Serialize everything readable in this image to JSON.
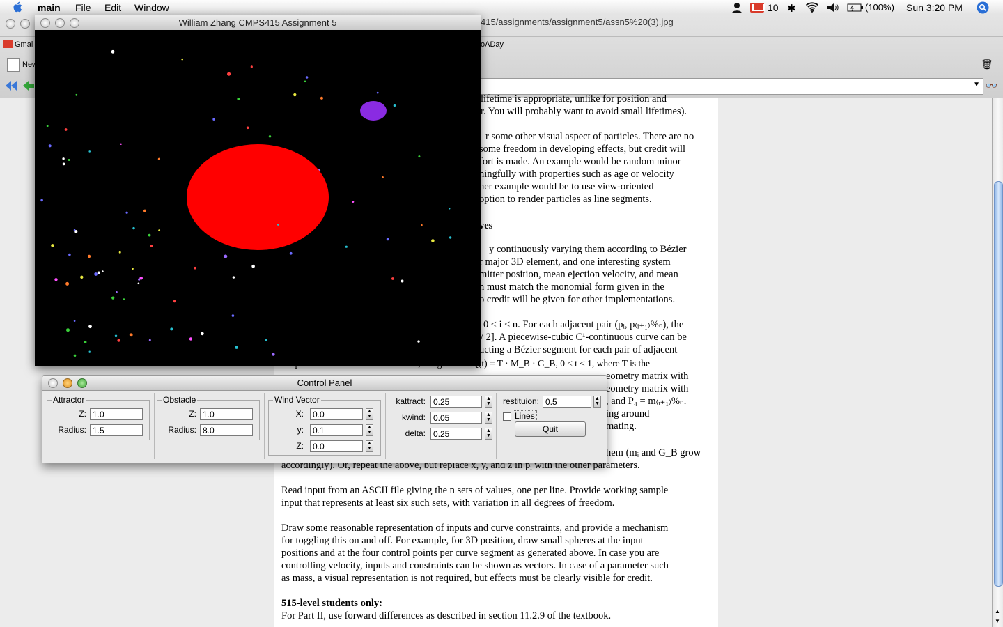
{
  "menubar": {
    "app_name": "main",
    "menus": [
      "File",
      "Edit",
      "Window"
    ],
    "mail_count": "10",
    "battery": "(100%)",
    "clock": "Sun 3:20 PM"
  },
  "browser": {
    "url_fragment": "415/assignments/assignment5/assn5%20(3).jpg",
    "bookmarks": [
      "Gmai",
      "New",
      "oADay"
    ],
    "doc_lines": [
      "lifetime is appropriate, unlike for position and",
      "r. You will probably want to avoid small lifetimes).",
      "r some other visual aspect of particles. There are no",
      "some freedom in developing effects, but credit will",
      "fort is made. An example would be random minor",
      "ningfully with properties such as age or velocity",
      "her example would be to use view-oriented",
      "option to render particles as line segments.",
      "ves",
      "y continuously varying them according to Bézier",
      "r major 3D element, and one interesting system",
      "mitter position, mean ejection velocity, and mean",
      "n must match the monomial form given in the",
      "o credit will be given for other implementations.",
      "0 ≤ i < n. For each adjacent pair (pᵢ, p₍ᵢ₊₁₎%ₙ), the",
      "/ 2]. A piecewise-cubic C¹-continuous curve can be",
      "ucting a Bézier segment for each pair of adjacent",
      "endpoints. In the textbook's notation, a segment is Q(t) = T · M_B · G_B, 0 ≤ t ≤ 1, where T is the",
      "eometry matrix with",
      "eometry matrix with",
      ", and P₄ = m₍ᵢ₊₁₎%ₙ.",
      "ing around",
      "mating.",
      "accordingly). Or, repeat the above, but replace x, y, and z in pᵢ with the other parameters.",
      "hem (mᵢ and G_B grow",
      "Read input from an ASCII file giving the n sets of values, one per line. Provide working sample",
      "input that represents at least six such sets, with variation in all degrees of freedom.",
      "Draw some reasonable representation of inputs and curve constraints, and provide a mechanism",
      "for toggling this on and off. For example, for 3D position, draw small spheres at the input",
      "positions and at the four control points per curve segment as generated above. In case you are",
      "controlling velocity, inputs and constraints can be shown as vectors. In case of a parameter such",
      "as mass, a visual representation is not required, but effects must be clearly visible for credit.",
      "515-level students only:",
      "For Part II, use forward differences as described in section 11.2.9 of the textbook."
    ]
  },
  "gl_window": {
    "title": "William Zhang CMPS415 Assignment 5",
    "colors": {
      "obstacle": "#ff0000",
      "attractor": "#8a2be2",
      "background": "#000000"
    }
  },
  "control_panel": {
    "title": "Control Panel",
    "attractor": {
      "title": "Attractor",
      "z_label": "Z:",
      "z": "1.0",
      "radius_label": "Radius:",
      "radius": "1.5"
    },
    "obstacle": {
      "title": "Obstacle",
      "z_label": "Z:",
      "z": "1.0",
      "radius_label": "Radius:",
      "radius": "8.0"
    },
    "wind": {
      "title": "Wind Vector",
      "x_label": "X:",
      "x": "0.0",
      "y_label": "y:",
      "y": "0.1",
      "z_label": "Z:",
      "z": "0.0"
    },
    "params": {
      "kattract_label": "kattract:",
      "kattract": "0.25",
      "kwind_label": "kwind:",
      "kwind": "0.05",
      "delta_label": "delta:",
      "delta": "0.25",
      "restitution_label": "restituion:",
      "restitution": "0.5",
      "lines_label": "Lines",
      "quit_label": "Quit"
    }
  }
}
